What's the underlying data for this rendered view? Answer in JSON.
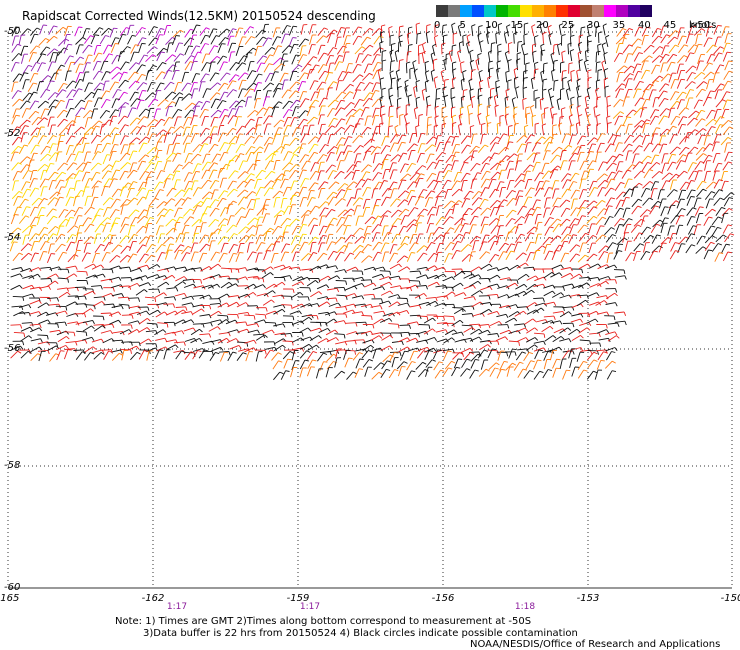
{
  "title": "Rapidscat Corrected Winds(12.5KM) 20150524 descending",
  "legend": {
    "colors": [
      "#3c3c3c",
      "#7a7a7a",
      "#00a0ff",
      "#0050ff",
      "#00c8c8",
      "#00b400",
      "#44dd00",
      "#ffe000",
      "#ffb000",
      "#ff8000",
      "#ff3000",
      "#e00030",
      "#a05030",
      "#c08070",
      "#ff00ff",
      "#b000c0",
      "#5000a0",
      "#200060"
    ],
    "ticks": [
      "0",
      "5",
      "10",
      "15",
      "20",
      "25",
      "30",
      "35",
      "40",
      "45",
      ">50"
    ],
    "units": "knots"
  },
  "lat_labels": [
    "-50",
    "-52",
    "-54",
    "-56",
    "-58",
    "-60"
  ],
  "lon_labels": [
    "-165",
    "-162",
    "-159",
    "-156",
    "-153",
    "-150"
  ],
  "times": [
    "1:17",
    "1:17",
    "1:18"
  ],
  "notes": {
    "line1": "Note: 1) Times are GMT 2)Times along bottom correspond to measurement at -50S",
    "line2": "3)Data buffer is 22 hrs from 20150524 4) Black circles indicate possible contamination",
    "line3": "NOAA/NESDIS/Office of Research and Applications"
  }
}
